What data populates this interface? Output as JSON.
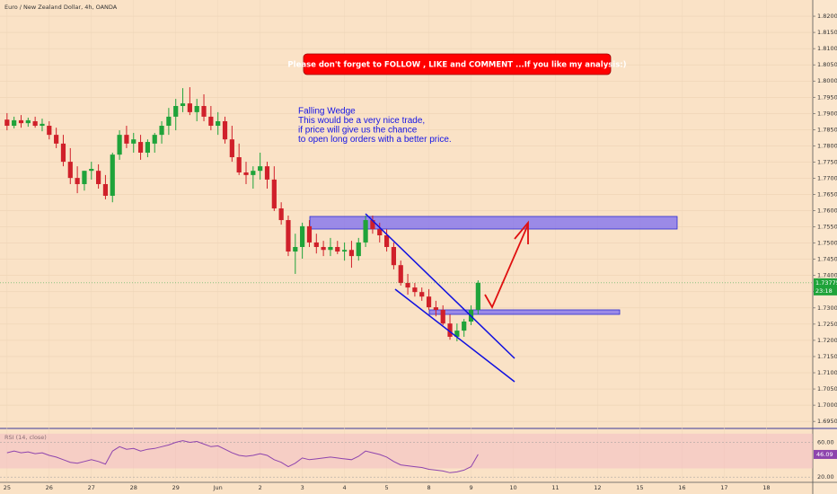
{
  "chart_data": {
    "type": "candlestick",
    "title": "Euro / New Zealand Dollar, 4h, OANDA",
    "x": [
      0,
      1,
      2,
      3,
      4,
      5,
      6,
      7,
      8,
      9,
      10,
      11,
      12,
      13,
      14,
      15,
      16,
      17,
      18,
      19,
      20,
      21,
      22,
      23,
      24,
      25,
      26,
      27,
      28,
      29,
      30,
      31,
      32,
      33,
      34,
      35,
      36,
      37,
      38,
      39,
      40,
      41,
      42,
      43,
      44,
      45,
      46,
      47,
      48,
      49,
      50,
      51,
      52,
      53,
      54,
      55,
      56,
      57,
      58,
      59,
      60,
      61,
      62,
      63,
      64,
      65,
      66,
      67
    ],
    "open": [
      1.7881,
      1.7862,
      1.7879,
      1.787,
      1.7876,
      1.7862,
      1.7862,
      1.7834,
      1.7807,
      1.7751,
      1.7701,
      1.7682,
      1.7723,
      1.7723,
      1.7682,
      1.7646,
      1.7773,
      1.7834,
      1.7807,
      1.7812,
      1.7779,
      1.7807,
      1.7834,
      1.7862,
      1.789,
      1.7923,
      1.7931,
      1.7904,
      1.7923,
      1.789,
      1.7862,
      1.7876,
      1.782,
      1.7765,
      1.7718,
      1.771,
      1.7723,
      1.7737,
      1.7696,
      1.7607,
      1.7571,
      1.7474,
      1.7488,
      1.7552,
      1.7502,
      1.7488,
      1.7479,
      1.7488,
      1.7474,
      1.7479,
      1.746,
      1.7502,
      1.7571,
      1.7543,
      1.7524,
      1.7488,
      1.7432,
      1.7377,
      1.7363,
      1.7349,
      1.7335,
      1.7302,
      1.7294,
      1.7252,
      1.7211,
      1.723,
      1.7258,
      1.7294
    ],
    "high": [
      1.7901,
      1.789,
      1.7895,
      1.7887,
      1.789,
      1.7884,
      1.7876,
      1.7856,
      1.7834,
      1.7793,
      1.7737,
      1.7723,
      1.7751,
      1.7743,
      1.771,
      1.7779,
      1.7848,
      1.7862,
      1.784,
      1.7834,
      1.782,
      1.784,
      1.7876,
      1.7917,
      1.7945,
      1.7978,
      1.7981,
      1.7945,
      1.7959,
      1.7923,
      1.7904,
      1.789,
      1.7862,
      1.7807,
      1.7751,
      1.7737,
      1.7779,
      1.7751,
      1.7737,
      1.7626,
      1.7585,
      1.7529,
      1.7563,
      1.7571,
      1.7529,
      1.7507,
      1.7516,
      1.7507,
      1.7502,
      1.7507,
      1.7516,
      1.7585,
      1.7585,
      1.7563,
      1.7543,
      1.7502,
      1.7446,
      1.7405,
      1.7377,
      1.7363,
      1.7358,
      1.7322,
      1.7308,
      1.728,
      1.7252,
      1.7266,
      1.7308,
      1.7385
    ],
    "low": [
      1.7848,
      1.7854,
      1.7856,
      1.7859,
      1.7856,
      1.7845,
      1.782,
      1.7793,
      1.7737,
      1.7682,
      1.7654,
      1.7662,
      1.7696,
      1.7668,
      1.7635,
      1.7626,
      1.7757,
      1.7793,
      1.7779,
      1.7757,
      1.7765,
      1.7779,
      1.7807,
      1.7834,
      1.7848,
      1.7904,
      1.7895,
      1.7876,
      1.7876,
      1.7848,
      1.7834,
      1.7807,
      1.7751,
      1.771,
      1.7682,
      1.7668,
      1.7696,
      1.7668,
      1.7599,
      1.7557,
      1.746,
      1.7405,
      1.7452,
      1.7488,
      1.7468,
      1.746,
      1.746,
      1.7466,
      1.7446,
      1.7424,
      1.7446,
      1.7488,
      1.7529,
      1.7502,
      1.7474,
      1.7419,
      1.7369,
      1.7341,
      1.7335,
      1.7322,
      1.7294,
      1.7274,
      1.7247,
      1.7202,
      1.7197,
      1.7211,
      1.7247,
      1.728
    ],
    "close": [
      1.7862,
      1.7879,
      1.787,
      1.7879,
      1.7862,
      1.7868,
      1.7834,
      1.7807,
      1.7751,
      1.7701,
      1.7682,
      1.7723,
      1.7729,
      1.7682,
      1.7646,
      1.7773,
      1.7834,
      1.7807,
      1.782,
      1.7779,
      1.7812,
      1.7834,
      1.7862,
      1.789,
      1.7923,
      1.7931,
      1.7904,
      1.7923,
      1.789,
      1.7862,
      1.7876,
      1.782,
      1.7765,
      1.7718,
      1.771,
      1.7723,
      1.7737,
      1.7696,
      1.7607,
      1.7571,
      1.7474,
      1.7488,
      1.7552,
      1.7502,
      1.7488,
      1.7479,
      1.7488,
      1.7474,
      1.7479,
      1.746,
      1.7502,
      1.7571,
      1.7543,
      1.7524,
      1.7488,
      1.7432,
      1.7377,
      1.7363,
      1.7349,
      1.7335,
      1.7302,
      1.7294,
      1.7252,
      1.7211,
      1.723,
      1.7258,
      1.7294,
      1.73775
    ],
    "up_color": "#1fa33a",
    "down_color": "#d0202a",
    "xlim": [
      -1,
      114.6
    ],
    "xticks": [
      {
        "value": 0,
        "label": "25"
      },
      {
        "value": 6,
        "label": "26"
      },
      {
        "value": 12,
        "label": "27"
      },
      {
        "value": 18,
        "label": "28"
      },
      {
        "value": 24,
        "label": "29"
      },
      {
        "value": 30,
        "label": "Jun"
      },
      {
        "value": 36,
        "label": "2"
      },
      {
        "value": 42,
        "label": "3"
      },
      {
        "value": 48,
        "label": "4"
      },
      {
        "value": 54,
        "label": "5"
      },
      {
        "value": 60,
        "label": "8"
      },
      {
        "value": 66,
        "label": "9"
      },
      {
        "value": 72,
        "label": "10"
      },
      {
        "value": 78,
        "label": "11"
      },
      {
        "value": 84,
        "label": "12"
      },
      {
        "value": 90,
        "label": "15"
      },
      {
        "value": 96,
        "label": "16"
      },
      {
        "value": 102,
        "label": "17"
      },
      {
        "value": 108,
        "label": "18"
      }
    ],
    "ylim": [
      1.6931,
      1.825
    ],
    "yticks": [
      {
        "value": 1.695,
        "label": "1.69500"
      },
      {
        "value": 1.7,
        "label": "1.70000"
      },
      {
        "value": 1.705,
        "label": "1.70500"
      },
      {
        "value": 1.71,
        "label": "1.71000"
      },
      {
        "value": 1.715,
        "label": "1.71500"
      },
      {
        "value": 1.72,
        "label": "1.72000"
      },
      {
        "value": 1.725,
        "label": "1.72500"
      },
      {
        "value": 1.73,
        "label": "1.73000"
      },
      {
        "value": 1.735,
        "label": "1.73500"
      },
      {
        "value": 1.74,
        "label": "1.74000"
      },
      {
        "value": 1.745,
        "label": "1.74500"
      },
      {
        "value": 1.75,
        "label": "1.75000"
      },
      {
        "value": 1.755,
        "label": "1.75500"
      },
      {
        "value": 1.76,
        "label": "1.76000"
      },
      {
        "value": 1.765,
        "label": "1.76500"
      },
      {
        "value": 1.77,
        "label": "1.77000"
      },
      {
        "value": 1.775,
        "label": "1.77500"
      },
      {
        "value": 1.78,
        "label": "1.78000"
      },
      {
        "value": 1.785,
        "label": "1.78500"
      },
      {
        "value": 1.79,
        "label": "1.79000"
      },
      {
        "value": 1.795,
        "label": "1.79500"
      },
      {
        "value": 1.8,
        "label": "1.80000"
      },
      {
        "value": 1.805,
        "label": "1.80500"
      },
      {
        "value": 1.81,
        "label": "1.81000"
      },
      {
        "value": 1.815,
        "label": "1.81500"
      },
      {
        "value": 1.82,
        "label": "1.82000"
      }
    ],
    "price_label": "1.73775",
    "countdown": "23:18",
    "rsi": {
      "title": "RSI (14, close)",
      "color": "#8e44ad",
      "ylim": [
        15,
        75
      ],
      "yticks": [
        {
          "value": 60,
          "label": "60.00"
        },
        {
          "value": 20,
          "label": "20.00"
        }
      ],
      "values": [
        48,
        50,
        48,
        49,
        47,
        48,
        45,
        43,
        40,
        37,
        36,
        38,
        40,
        38,
        35,
        50,
        55,
        52,
        53,
        50,
        52,
        53,
        55,
        57,
        60,
        62,
        60,
        61,
        58,
        55,
        56,
        52,
        48,
        45,
        44,
        45,
        47,
        45,
        40,
        37,
        32,
        36,
        42,
        40,
        41,
        42,
        43,
        42,
        41,
        40,
        44,
        50,
        48,
        46,
        43,
        38,
        34,
        33,
        32,
        31,
        29,
        28,
        27,
        25,
        26,
        28,
        32,
        46.09
      ],
      "value_label": "46.09"
    }
  },
  "annotations": {
    "banner": "Please don't forget  to FOLLOW , LIKE and COMMENT ...If you like my analysis:)",
    "note": [
      "Falling Wedge",
      "This would be a very nice trade,",
      "if price will give us the chance",
      "to open long orders with a better price."
    ]
  }
}
